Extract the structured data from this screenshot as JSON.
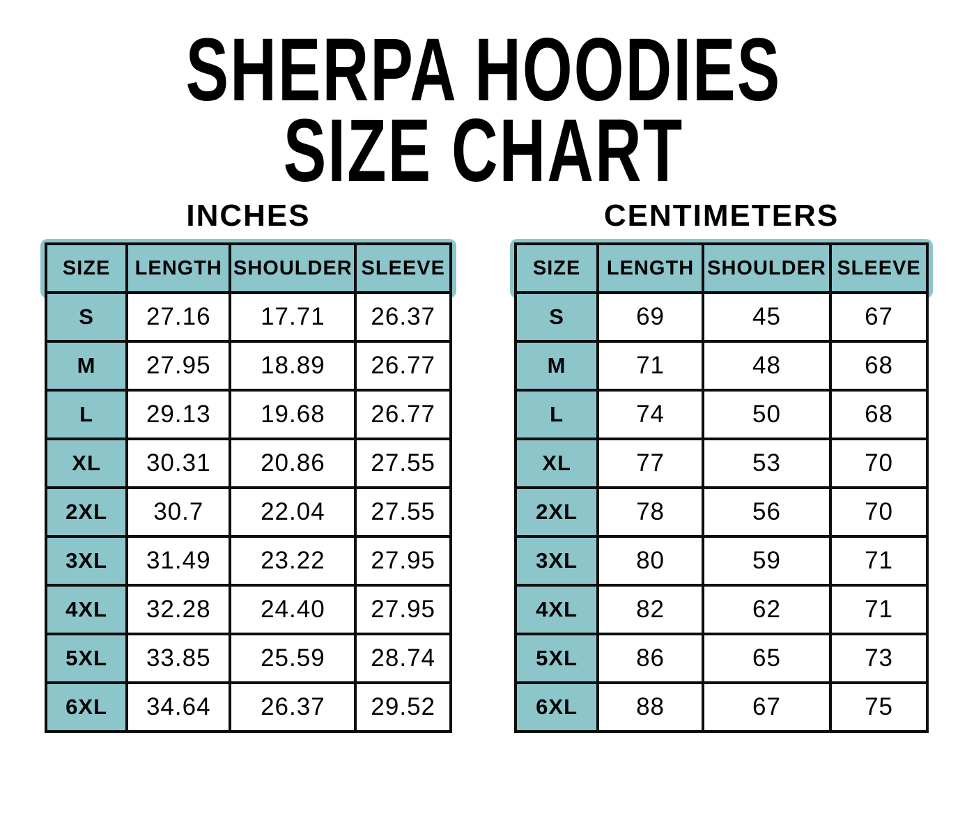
{
  "ui": {
    "title_line1": "SHERPA HOODIES",
    "title_line2": "SIZE CHART"
  },
  "chart_data": [
    {
      "type": "table",
      "title": "INCHES",
      "columns": [
        "SIZE",
        "LENGTH",
        "SHOULDER",
        "SLEEVE"
      ],
      "rows": [
        [
          "S",
          "27.16",
          "17.71",
          "26.37"
        ],
        [
          "M",
          "27.95",
          "18.89",
          "26.77"
        ],
        [
          "L",
          "29.13",
          "19.68",
          "26.77"
        ],
        [
          "XL",
          "30.31",
          "20.86",
          "27.55"
        ],
        [
          "2XL",
          "30.7",
          "22.04",
          "27.55"
        ],
        [
          "3XL",
          "31.49",
          "23.22",
          "27.95"
        ],
        [
          "4XL",
          "32.28",
          "24.40",
          "27.95"
        ],
        [
          "5XL",
          "33.85",
          "25.59",
          "28.74"
        ],
        [
          "6XL",
          "34.64",
          "26.37",
          "29.52"
        ]
      ]
    },
    {
      "type": "table",
      "title": "CENTIMETERS",
      "columns": [
        "SIZE",
        "LENGTH",
        "SHOULDER",
        "SLEEVE"
      ],
      "rows": [
        [
          "S",
          "69",
          "45",
          "67"
        ],
        [
          "M",
          "71",
          "48",
          "68"
        ],
        [
          "L",
          "74",
          "50",
          "68"
        ],
        [
          "XL",
          "77",
          "53",
          "70"
        ],
        [
          "2XL",
          "78",
          "56",
          "70"
        ],
        [
          "3XL",
          "80",
          "59",
          "71"
        ],
        [
          "4XL",
          "82",
          "62",
          "71"
        ],
        [
          "5XL",
          "86",
          "65",
          "73"
        ],
        [
          "6XL",
          "88",
          "67",
          "75"
        ]
      ]
    }
  ],
  "colors": {
    "header_teal": "#8cc6cb",
    "border": "#0d0d0d",
    "background": "#ffffff",
    "text": "#000000"
  }
}
